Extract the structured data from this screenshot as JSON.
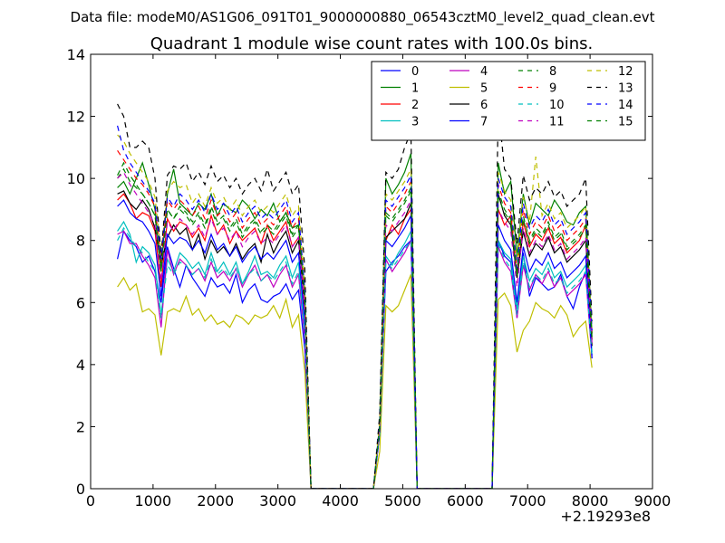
{
  "figure": {
    "suptitle": "Data file: modeM0/AS1G06_091T01_9000000880_06543cztM0_level2_quad_clean.evt"
  },
  "chart_data": {
    "type": "line",
    "title": "Quadrant 1 module wise count rates with 100.0s bins.",
    "xlabel": "",
    "ylabel": "",
    "x_offset_label": "+2.19293e8",
    "xlim": [
      0,
      9000
    ],
    "ylim": [
      0,
      14
    ],
    "xticks": [
      0,
      1000,
      2000,
      3000,
      4000,
      5000,
      6000,
      7000,
      8000,
      9000
    ],
    "yticks": [
      0,
      2,
      4,
      6,
      8,
      10,
      12,
      14
    ],
    "grid": false,
    "legend": {
      "placement": "upper-right",
      "columns": 4
    },
    "x": [
      430,
      530,
      630,
      730,
      830,
      930,
      1030,
      1130,
      1230,
      1330,
      1430,
      1530,
      1630,
      1730,
      1830,
      1930,
      2030,
      2130,
      2230,
      2330,
      2430,
      2530,
      2630,
      2730,
      2830,
      2930,
      3030,
      3130,
      3230,
      3330,
      3430,
      3530,
      3630,
      4530,
      4630,
      4730,
      4830,
      4930,
      5030,
      5130,
      5230,
      5330,
      6430,
      6530,
      6630,
      6730,
      6830,
      6930,
      7030,
      7130,
      7230,
      7330,
      7430,
      7530,
      7630,
      7730,
      7830,
      7930,
      8030
    ],
    "series": [
      {
        "name": "0",
        "color": "#0000ff",
        "dash": "solid",
        "values": [
          7.4,
          8.3,
          8.0,
          7.8,
          7.3,
          7.5,
          7.0,
          6.0,
          7.8,
          7.1,
          6.5,
          7.2,
          6.8,
          6.5,
          6.2,
          6.8,
          6.5,
          6.6,
          6.3,
          6.9,
          6.0,
          6.4,
          6.6,
          6.1,
          6.0,
          6.2,
          6.3,
          6.6,
          6.1,
          6.4,
          4.5,
          0.0,
          0.0,
          0.0,
          2.0,
          7.0,
          7.3,
          7.5,
          7.8,
          8.0,
          0.0,
          0.0,
          0.0,
          8.0,
          7.5,
          7.3,
          5.5,
          7.6,
          6.2,
          6.8,
          6.6,
          6.4,
          6.5,
          6.9,
          6.2,
          5.8,
          6.5,
          7.0,
          4.3
        ]
      },
      {
        "name": "1",
        "color": "#008000",
        "dash": "solid",
        "values": [
          9.7,
          9.9,
          9.5,
          10.0,
          10.5,
          9.8,
          9.0,
          7.0,
          9.5,
          10.3,
          9.2,
          9.0,
          8.8,
          9.2,
          9.0,
          9.5,
          8.8,
          9.2,
          9.0,
          8.9,
          9.3,
          9.1,
          8.7,
          9.0,
          8.8,
          9.2,
          8.6,
          8.9,
          8.4,
          8.5,
          6.0,
          0.0,
          0.0,
          0.0,
          2.1,
          10.0,
          9.5,
          9.8,
          10.2,
          10.8,
          0.0,
          0.0,
          0.0,
          10.5,
          9.5,
          9.9,
          7.5,
          9.5,
          8.5,
          9.2,
          9.0,
          8.8,
          9.3,
          9.0,
          8.6,
          8.5,
          8.9,
          9.1,
          5.0
        ]
      },
      {
        "name": "2",
        "color": "#ff0000",
        "dash": "solid",
        "values": [
          9.3,
          9.5,
          9.2,
          8.7,
          8.9,
          8.8,
          8.3,
          6.5,
          8.7,
          8.3,
          8.6,
          8.5,
          8.1,
          8.4,
          8.0,
          8.8,
          8.2,
          8.5,
          7.9,
          8.3,
          8.0,
          8.2,
          8.4,
          7.9,
          8.5,
          8.0,
          8.3,
          8.6,
          7.8,
          8.1,
          5.8,
          0.0,
          0.0,
          0.0,
          1.9,
          8.0,
          8.5,
          8.2,
          8.7,
          9.0,
          0.0,
          0.0,
          0.0,
          9.0,
          8.5,
          8.8,
          6.8,
          8.6,
          7.8,
          8.2,
          8.0,
          8.4,
          7.9,
          8.1,
          7.6,
          7.8,
          8.0,
          8.5,
          4.8
        ]
      },
      {
        "name": "3",
        "color": "#00bfbf",
        "dash": "solid",
        "values": [
          8.3,
          8.6,
          8.2,
          7.3,
          7.8,
          7.6,
          7.2,
          5.6,
          7.4,
          7.0,
          7.6,
          7.4,
          7.1,
          7.3,
          6.9,
          7.6,
          7.0,
          7.3,
          6.9,
          7.3,
          6.6,
          7.0,
          7.5,
          6.9,
          7.0,
          6.8,
          7.2,
          7.5,
          6.8,
          7.3,
          5.0,
          0.0,
          0.0,
          0.0,
          1.8,
          7.5,
          7.2,
          7.6,
          7.9,
          8.3,
          0.0,
          0.0,
          0.0,
          8.0,
          7.6,
          7.4,
          5.8,
          7.5,
          6.7,
          7.1,
          6.9,
          7.3,
          6.8,
          7.0,
          6.5,
          6.7,
          6.9,
          7.2,
          4.4
        ]
      },
      {
        "name": "4",
        "color": "#bf00bf",
        "dash": "solid",
        "values": [
          8.2,
          8.3,
          7.9,
          7.9,
          7.5,
          7.2,
          6.8,
          5.2,
          7.7,
          6.9,
          7.4,
          7.2,
          6.9,
          7.1,
          6.7,
          7.3,
          6.8,
          7.0,
          6.7,
          7.1,
          6.5,
          6.9,
          7.2,
          6.7,
          6.9,
          6.5,
          6.9,
          7.2,
          6.5,
          6.9,
          4.8,
          0.0,
          0.0,
          0.0,
          1.8,
          7.4,
          7.0,
          7.3,
          7.6,
          8.0,
          0.0,
          0.0,
          0.0,
          7.8,
          7.3,
          7.0,
          5.5,
          7.2,
          6.4,
          6.9,
          6.6,
          7.0,
          6.5,
          6.8,
          6.2,
          6.4,
          6.6,
          6.9,
          4.2
        ]
      },
      {
        "name": "5",
        "color": "#bfbf00",
        "dash": "solid",
        "values": [
          6.5,
          6.8,
          6.4,
          6.6,
          5.7,
          5.8,
          5.6,
          4.3,
          5.7,
          5.8,
          5.7,
          6.2,
          5.6,
          5.8,
          5.4,
          5.6,
          5.3,
          5.4,
          5.2,
          5.6,
          5.5,
          5.3,
          5.6,
          5.5,
          5.6,
          5.9,
          5.5,
          6.1,
          5.2,
          5.6,
          3.8,
          0.0,
          0.0,
          0.0,
          1.2,
          5.9,
          5.7,
          5.9,
          6.4,
          6.9,
          0.0,
          0.0,
          0.0,
          6.1,
          6.3,
          5.9,
          4.4,
          5.1,
          5.4,
          6.0,
          5.8,
          5.7,
          5.5,
          5.9,
          5.6,
          4.9,
          5.2,
          5.4,
          3.9
        ]
      },
      {
        "name": "6",
        "color": "#000000",
        "dash": "solid",
        "values": [
          9.5,
          9.6,
          9.2,
          9.0,
          9.3,
          9.0,
          8.4,
          7.2,
          8.1,
          8.5,
          8.2,
          8.4,
          7.7,
          8.2,
          7.4,
          8.0,
          7.6,
          7.8,
          7.5,
          7.9,
          7.4,
          7.7,
          7.9,
          7.3,
          8.2,
          7.6,
          8.0,
          8.3,
          7.6,
          8.0,
          5.9,
          0.0,
          0.0,
          0.0,
          1.9,
          8.1,
          8.3,
          8.5,
          8.7,
          9.2,
          0.0,
          0.0,
          0.0,
          9.5,
          8.8,
          8.5,
          6.8,
          8.3,
          7.5,
          7.9,
          7.7,
          8.1,
          7.6,
          7.8,
          7.3,
          7.5,
          7.7,
          8.0,
          4.6
        ]
      },
      {
        "name": "7",
        "color": "#0000ff",
        "dash": "solid",
        "values": [
          9.1,
          9.3,
          8.9,
          8.7,
          8.6,
          8.3,
          7.9,
          6.2,
          8.2,
          7.9,
          8.1,
          8.0,
          7.7,
          8.0,
          7.6,
          8.2,
          7.7,
          7.9,
          7.5,
          7.8,
          7.3,
          7.6,
          7.8,
          7.4,
          7.6,
          7.4,
          7.7,
          8.0,
          7.3,
          7.6,
          5.4,
          0.0,
          0.0,
          0.0,
          1.8,
          8.0,
          7.8,
          8.1,
          8.4,
          8.8,
          0.0,
          0.0,
          0.0,
          8.5,
          8.0,
          7.7,
          6.0,
          7.8,
          7.0,
          7.4,
          7.2,
          7.6,
          7.1,
          7.3,
          6.8,
          7.0,
          7.2,
          7.5,
          4.2
        ]
      },
      {
        "name": "8",
        "color": "#008000",
        "dash": "dashed",
        "values": [
          10.0,
          10.3,
          9.9,
          9.7,
          9.5,
          9.2,
          8.8,
          7.0,
          9.0,
          8.7,
          9.0,
          8.8,
          8.5,
          8.8,
          8.4,
          9.0,
          8.5,
          8.7,
          8.3,
          8.6,
          8.1,
          8.4,
          8.6,
          8.2,
          8.4,
          8.2,
          8.5,
          8.8,
          8.1,
          8.4,
          6.1,
          0.0,
          0.0,
          0.0,
          2.0,
          8.8,
          8.6,
          8.9,
          9.2,
          9.6,
          0.0,
          0.0,
          0.0,
          9.4,
          8.9,
          8.6,
          6.8,
          8.7,
          7.9,
          8.3,
          8.1,
          8.5,
          8.0,
          8.2,
          7.7,
          7.9,
          8.1,
          8.4,
          4.8
        ]
      },
      {
        "name": "9",
        "color": "#ff0000",
        "dash": "dashed",
        "values": [
          10.9,
          10.6,
          10.3,
          10.0,
          9.8,
          9.5,
          9.1,
          7.3,
          9.3,
          9.0,
          9.3,
          9.1,
          8.8,
          9.1,
          8.7,
          9.3,
          8.8,
          9.0,
          8.6,
          8.9,
          8.4,
          8.7,
          8.9,
          8.5,
          8.7,
          8.5,
          8.8,
          9.1,
          8.4,
          8.7,
          6.3,
          0.0,
          0.0,
          0.0,
          2.1,
          9.1,
          8.9,
          9.2,
          9.5,
          9.9,
          0.0,
          0.0,
          0.0,
          9.8,
          9.2,
          8.9,
          7.0,
          9.0,
          8.2,
          8.6,
          8.4,
          8.8,
          8.3,
          8.5,
          8.0,
          8.2,
          8.4,
          8.7,
          5.0
        ]
      },
      {
        "name": "10",
        "color": "#00bfbf",
        "dash": "dashed",
        "values": [
          8.0,
          8.4,
          8.1,
          7.8,
          7.6,
          7.3,
          7.0,
          5.5,
          7.2,
          6.9,
          7.3,
          7.2,
          6.9,
          7.1,
          6.8,
          7.4,
          6.9,
          7.1,
          6.8,
          7.1,
          6.6,
          6.9,
          7.1,
          6.7,
          6.9,
          6.7,
          7.0,
          7.3,
          6.6,
          7.0,
          5.0,
          0.0,
          0.0,
          0.0,
          1.8,
          7.3,
          7.1,
          7.4,
          7.7,
          8.0,
          0.0,
          0.0,
          0.0,
          7.9,
          7.4,
          7.1,
          5.6,
          7.3,
          6.5,
          6.9,
          6.7,
          7.1,
          6.6,
          6.8,
          6.3,
          6.5,
          6.7,
          7.0,
          4.3
        ]
      },
      {
        "name": "11",
        "color": "#bf00bf",
        "dash": "dashed",
        "values": [
          10.0,
          10.2,
          9.8,
          9.5,
          9.2,
          8.9,
          8.5,
          6.7,
          8.6,
          8.3,
          8.7,
          8.5,
          8.2,
          8.5,
          8.1,
          8.7,
          8.2,
          8.4,
          8.0,
          8.3,
          7.8,
          8.1,
          8.3,
          7.9,
          8.1,
          7.9,
          8.2,
          8.5,
          7.8,
          8.1,
          5.9,
          0.0,
          0.0,
          0.0,
          2.0,
          8.5,
          8.3,
          8.6,
          8.9,
          9.3,
          0.0,
          0.0,
          0.0,
          9.0,
          8.6,
          8.3,
          6.5,
          8.4,
          7.6,
          8.0,
          7.8,
          8.2,
          7.7,
          7.9,
          7.4,
          7.6,
          7.8,
          8.1,
          4.7
        ]
      },
      {
        "name": "12",
        "color": "#bfbf00",
        "dash": "dashed",
        "values": [
          11.4,
          11.2,
          10.8,
          10.5,
          10.2,
          9.9,
          9.4,
          7.6,
          9.6,
          9.9,
          9.7,
          9.8,
          9.2,
          9.5,
          9.1,
          9.7,
          9.2,
          9.4,
          9.0,
          9.3,
          8.8,
          9.1,
          9.3,
          8.9,
          9.1,
          8.9,
          9.2,
          9.5,
          8.8,
          9.1,
          6.6,
          0.0,
          0.0,
          0.0,
          2.2,
          9.5,
          9.3,
          9.6,
          9.9,
          10.3,
          0.0,
          0.0,
          0.0,
          10.2,
          9.6,
          9.3,
          7.3,
          9.4,
          8.6,
          10.7,
          8.8,
          9.2,
          8.7,
          8.9,
          8.4,
          8.6,
          8.8,
          9.1,
          5.2
        ]
      },
      {
        "name": "13",
        "color": "#000000",
        "dash": "dashed",
        "values": [
          12.4,
          12.0,
          11.0,
          11.0,
          11.2,
          11.0,
          10.0,
          7.5,
          10.1,
          10.4,
          10.3,
          10.5,
          9.9,
          10.2,
          9.8,
          10.4,
          9.9,
          10.1,
          9.7,
          10.0,
          9.5,
          9.8,
          10.0,
          9.6,
          10.3,
          9.6,
          9.9,
          10.2,
          9.5,
          9.8,
          7.1,
          0.0,
          0.0,
          0.0,
          2.4,
          10.2,
          10.0,
          10.3,
          11.0,
          11.5,
          0.0,
          0.0,
          0.0,
          12.3,
          10.3,
          10.0,
          7.9,
          10.1,
          9.3,
          9.7,
          9.5,
          9.9,
          9.4,
          9.6,
          9.1,
          9.3,
          9.5,
          10.0,
          5.4
        ]
      },
      {
        "name": "14",
        "color": "#0000ff",
        "dash": "dashed",
        "values": [
          11.7,
          10.9,
          10.5,
          10.2,
          9.9,
          9.6,
          9.2,
          7.4,
          9.4,
          9.1,
          9.5,
          9.3,
          9.0,
          9.3,
          8.9,
          9.5,
          9.0,
          9.2,
          8.8,
          9.1,
          8.6,
          8.9,
          9.1,
          8.7,
          8.9,
          8.7,
          9.0,
          9.3,
          8.6,
          8.9,
          6.4,
          0.0,
          0.0,
          0.0,
          2.1,
          9.3,
          9.1,
          9.4,
          9.7,
          10.1,
          0.0,
          0.0,
          0.0,
          10.0,
          9.4,
          9.1,
          7.1,
          9.2,
          8.4,
          8.8,
          8.6,
          9.0,
          8.5,
          8.7,
          8.2,
          8.4,
          8.6,
          8.9,
          5.1
        ]
      },
      {
        "name": "15",
        "color": "#008000",
        "dash": "dashed",
        "values": [
          10.1,
          10.5,
          10.1,
          9.8,
          9.5,
          9.2,
          8.8,
          7.1,
          9.0,
          8.7,
          9.1,
          8.9,
          8.6,
          8.9,
          8.5,
          9.1,
          8.6,
          8.8,
          8.4,
          8.7,
          8.2,
          8.5,
          8.7,
          8.3,
          8.5,
          8.3,
          8.6,
          8.9,
          8.2,
          8.5,
          6.2,
          0.0,
          0.0,
          0.0,
          2.0,
          8.9,
          8.7,
          9.0,
          9.3,
          9.7,
          0.0,
          0.0,
          0.0,
          9.6,
          9.0,
          8.7,
          6.9,
          8.8,
          8.0,
          8.4,
          8.2,
          8.6,
          8.1,
          8.3,
          7.8,
          8.0,
          8.2,
          8.5,
          4.9
        ]
      }
    ]
  }
}
